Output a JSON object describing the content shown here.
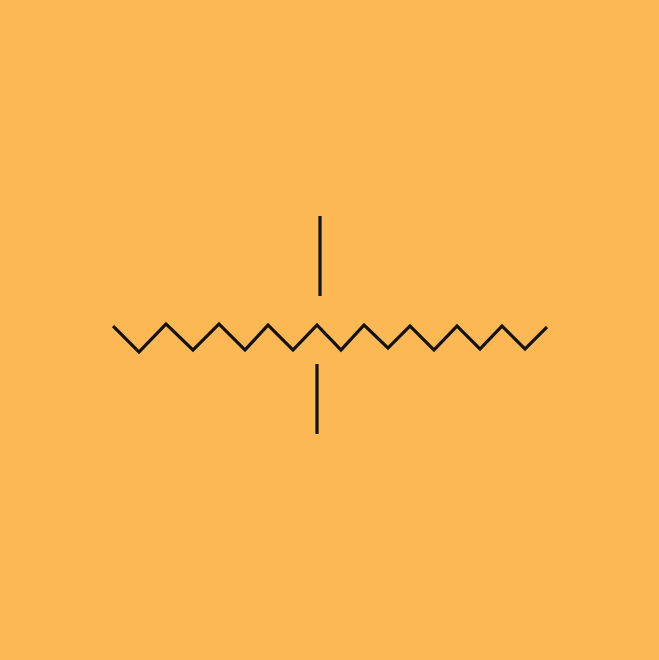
{
  "background_color": "#FBB853",
  "stroke_color": "#111111",
  "diagram": {
    "type": "zigzag-line-with-vertical-ticks",
    "zigzag_segments": 18,
    "vertical_ticks": 2
  }
}
